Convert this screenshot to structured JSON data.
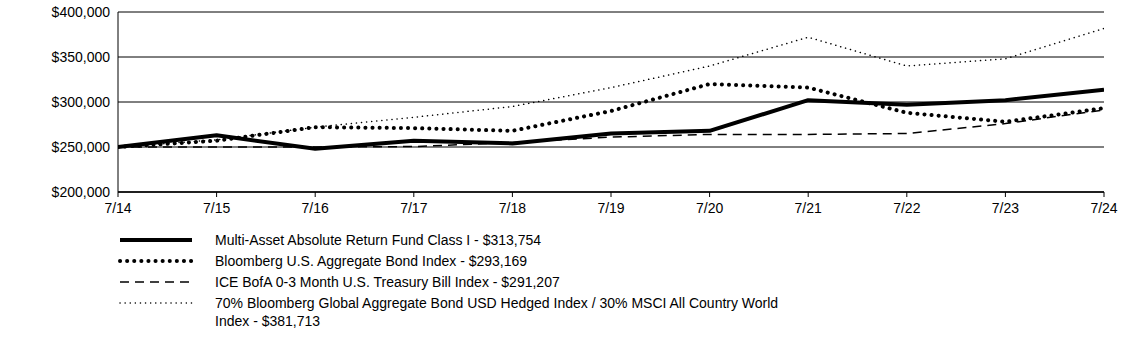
{
  "chart_data": {
    "type": "line",
    "categories": [
      "7/14",
      "7/15",
      "7/16",
      "7/17",
      "7/18",
      "7/19",
      "7/20",
      "7/21",
      "7/22",
      "7/23",
      "7/24"
    ],
    "series": [
      {
        "name": "Multi-Asset Absolute Return Fund Class I - $313,754",
        "color": "#000000",
        "line_style": "solid",
        "values": [
          250000,
          263000,
          248000,
          257000,
          254000,
          265000,
          268000,
          302000,
          297000,
          302000,
          313754
        ]
      },
      {
        "name": "Bloomberg U.S. Aggregate Bond Index - $293,169",
        "color": "#000000",
        "line_style": "dotted",
        "values": [
          250000,
          257000,
          272000,
          271000,
          268000,
          290000,
          320000,
          316000,
          288000,
          278000,
          293169
        ]
      },
      {
        "name": "ICE BofA 0-3 Month U.S. Treasury Bill Index - $291,207",
        "color": "#000000",
        "line_style": "dashed",
        "values": [
          250000,
          250000,
          250000,
          250500,
          255000,
          261000,
          264000,
          264000,
          265000,
          276000,
          291207
        ]
      },
      {
        "name": "70% Bloomberg Global Aggregate Bond USD Hedged Index / 30% MSCI All Country World Index - $381,713",
        "color": "#000000",
        "line_style": "fine-dotted",
        "values": [
          250000,
          258000,
          272000,
          283000,
          295000,
          316000,
          340000,
          372000,
          340000,
          348000,
          381713
        ]
      }
    ],
    "ylim": [
      200000,
      400000
    ],
    "yticks": [
      {
        "value": 200000,
        "label": "$200,000"
      },
      {
        "value": 250000,
        "label": "$250,000"
      },
      {
        "value": 300000,
        "label": "$300,000"
      },
      {
        "value": 350000,
        "label": "$350,000"
      },
      {
        "value": 400000,
        "label": "$400,000"
      }
    ],
    "grid": true,
    "legend": "bottom-left"
  }
}
